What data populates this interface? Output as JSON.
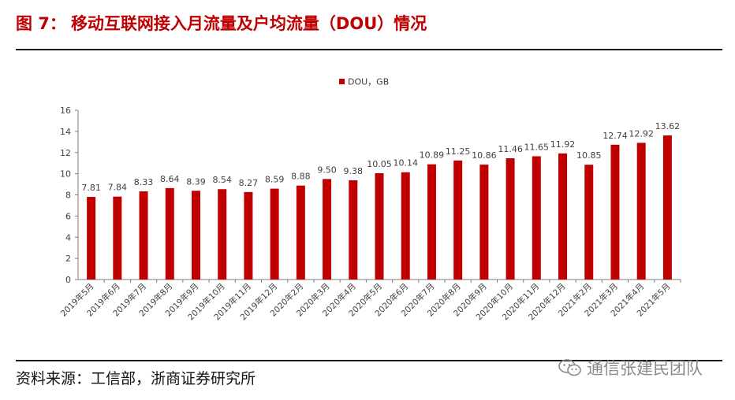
{
  "figure": {
    "number": "图 7：",
    "title": "移动互联网接入月流量及户均流量（DOU）情况"
  },
  "source": "资料来源：工信部，浙商证券研究所",
  "watermark": {
    "text": "通信张建民团队",
    "icon": "wechat-icon"
  },
  "colors": {
    "bar": "#c00000",
    "title": "#c00000",
    "axis": "#7f7f7f",
    "text": "#404040"
  },
  "chart_data": {
    "type": "bar",
    "title": "",
    "xlabel": "",
    "ylabel": "",
    "ylim": [
      0,
      16
    ],
    "yticks": [
      0,
      2,
      4,
      6,
      8,
      10,
      12,
      14,
      16
    ],
    "grid": false,
    "legend": {
      "position": "top-center",
      "entries": [
        "DOU，GB"
      ]
    },
    "categories": [
      "2019年5月",
      "2019年6月",
      "2019年7月",
      "2019年8月",
      "2019年9月",
      "2019年10月",
      "2019年11月",
      "2019年12月",
      "2020年2月",
      "2020年3月",
      "2020年4月",
      "2020年5月",
      "2020年6月",
      "2020年7月",
      "2020年8月",
      "2020年9月",
      "2020年10月",
      "2020年11月",
      "2020年12月",
      "2021年2月",
      "2021年3月",
      "2021年4月",
      "2021年5月"
    ],
    "series": [
      {
        "name": "DOU，GB",
        "values": [
          7.81,
          7.84,
          8.33,
          8.64,
          8.39,
          8.54,
          8.27,
          8.59,
          8.88,
          9.5,
          9.38,
          10.05,
          10.14,
          10.89,
          11.25,
          10.86,
          11.46,
          11.65,
          11.92,
          10.85,
          12.74,
          12.92,
          13.62
        ],
        "labels": [
          "7.81",
          "7.84",
          "8.33",
          "8.64",
          "8.39",
          "8.54",
          "8.27",
          "8.59",
          "8.88",
          "9.50",
          "9.38",
          "10.05",
          "10.14",
          "10.89",
          "11.25",
          "10.86",
          "11.46",
          "11.65",
          "11.92",
          "10.85",
          "12.74",
          "12.92",
          "13.62"
        ]
      }
    ]
  }
}
